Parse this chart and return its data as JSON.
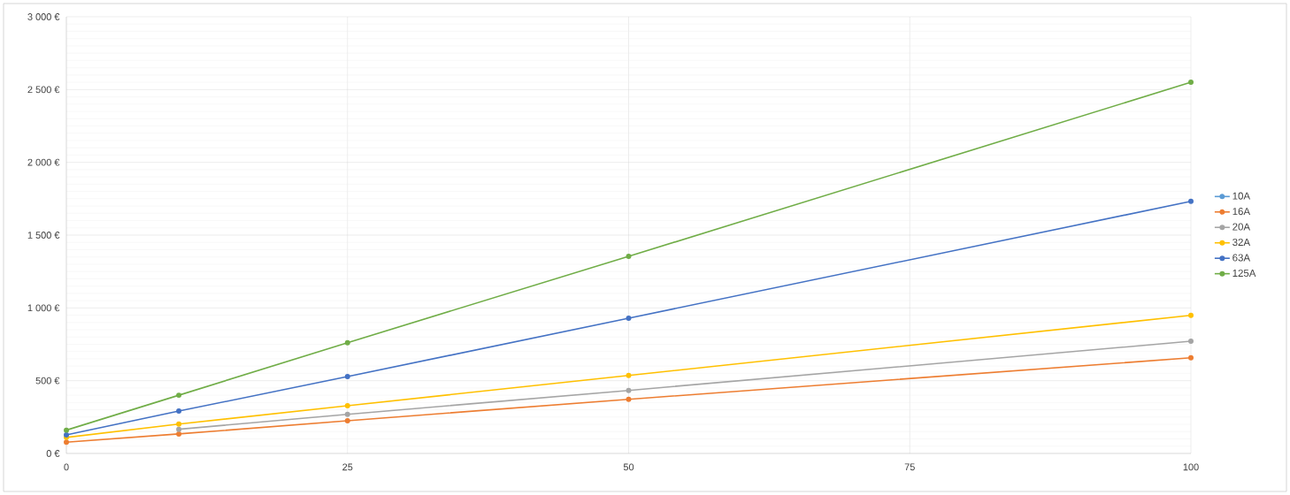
{
  "chart_data": {
    "type": "line",
    "x": [
      0,
      10,
      25,
      50,
      100
    ],
    "xlim": [
      0,
      100
    ],
    "xticks": [
      0,
      25,
      50,
      75,
      100
    ],
    "ylim": [
      0,
      3000
    ],
    "yticks": [
      {
        "value": 0,
        "label": "0 €"
      },
      {
        "value": 500,
        "label": "500 €"
      },
      {
        "value": 1000,
        "label": "1 000 €"
      },
      {
        "value": 1500,
        "label": "1 500 €"
      },
      {
        "value": 2000,
        "label": "2 000 €"
      },
      {
        "value": 2500,
        "label": "2 500 €"
      },
      {
        "value": 3000,
        "label": "3 000 €"
      }
    ],
    "grid": true,
    "legend": "right",
    "marker": "circle",
    "line_style": "solid",
    "series": [
      {
        "name": "10A",
        "color": "#5b9bd5",
        "values": [
          null,
          null,
          null,
          null,
          null
        ]
      },
      {
        "name": "16A",
        "color": "#ed7d31",
        "values": [
          77,
          134,
          225,
          372,
          657
        ]
      },
      {
        "name": "20A",
        "color": "#a5a5a5",
        "values": [
          null,
          166,
          269,
          433,
          771
        ]
      },
      {
        "name": "32A",
        "color": "#ffc000",
        "values": [
          110,
          202,
          328,
          536,
          949
        ]
      },
      {
        "name": "63A",
        "color": "#4472c4",
        "values": [
          127,
          291,
          528,
          929,
          1732
        ]
      },
      {
        "name": "125A",
        "color": "#70ad47",
        "values": [
          160,
          400,
          761,
          1354,
          2550
        ]
      }
    ]
  }
}
